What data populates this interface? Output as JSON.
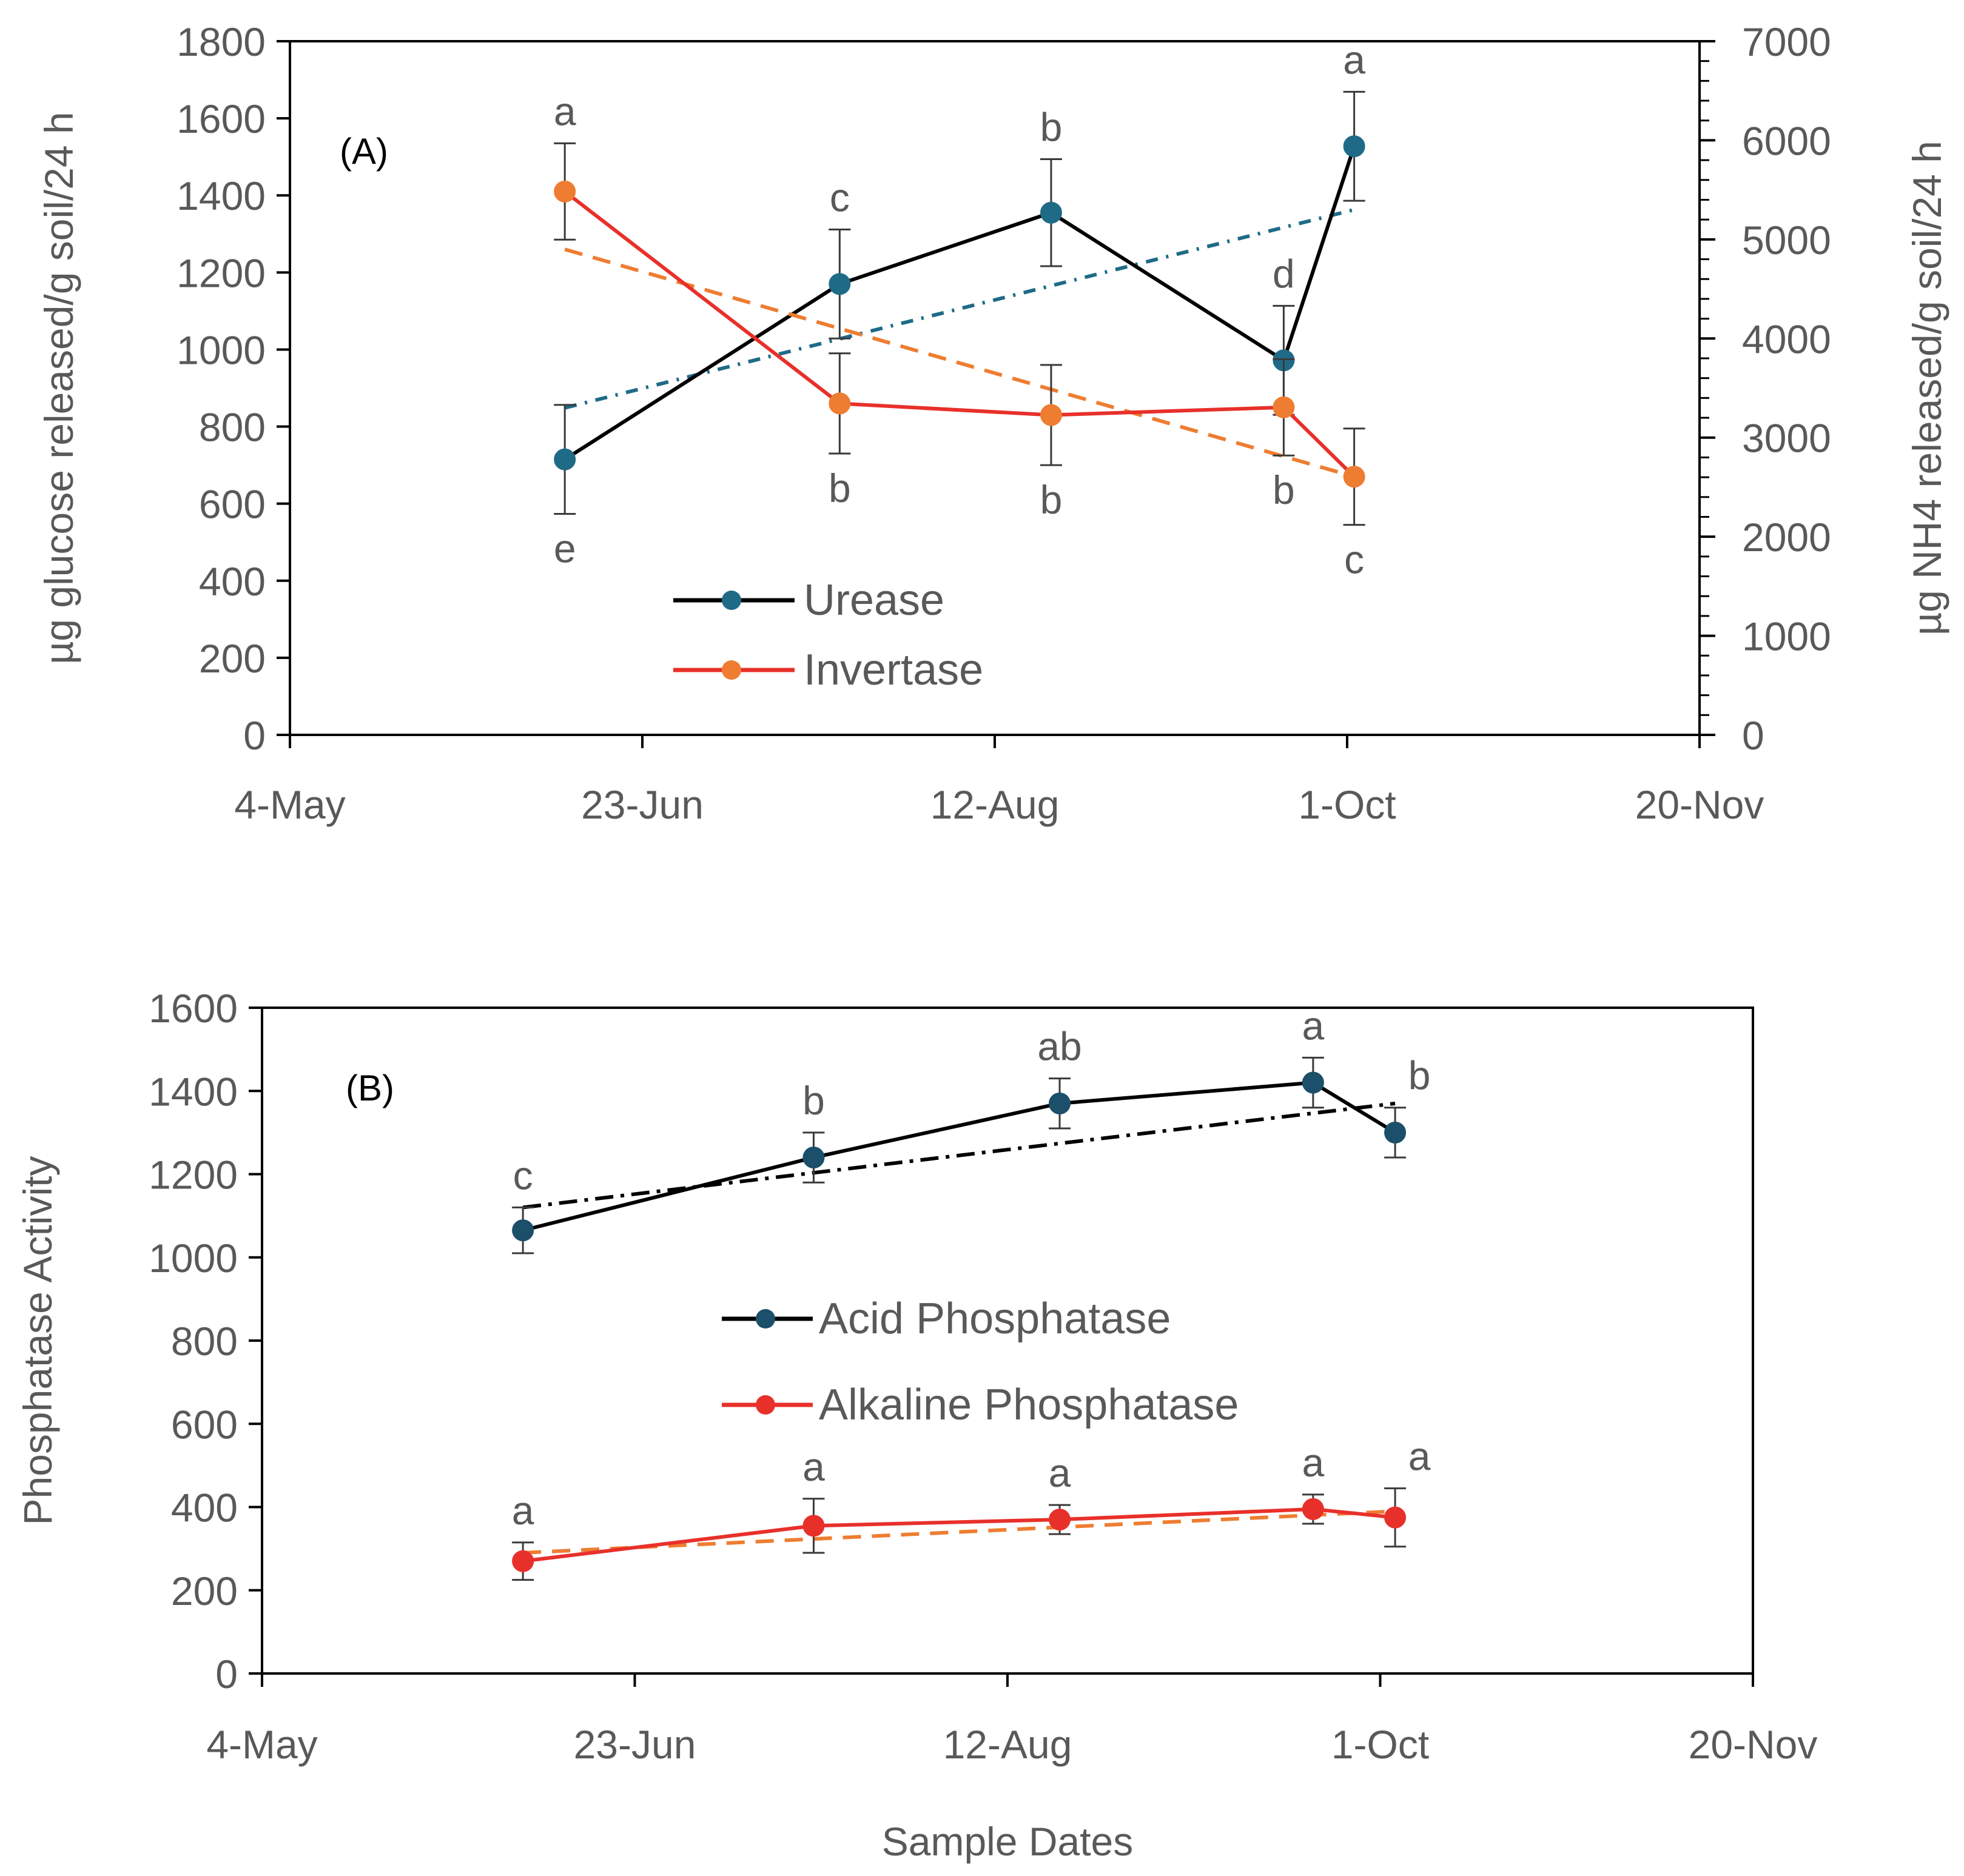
{
  "chart_data": [
    {
      "panel": "(A)",
      "type": "line",
      "xlabel": "",
      "x_ticks": [
        "4-May",
        "23-Jun",
        "12-Aug",
        "1-Oct",
        "20-Nov"
      ],
      "xlim_days": [
        0,
        200
      ],
      "ylabel": "µg glucose released/g soil/24 h",
      "ylim": [
        0,
        1800
      ],
      "y_ticks": [
        "0",
        "200",
        "400",
        "600",
        "800",
        "1000",
        "1200",
        "1400",
        "1600",
        "1800"
      ],
      "y2label": "µg NH4 released/g soil/24 h",
      "y2lim": [
        0,
        7000
      ],
      "y2_ticks": [
        "0",
        "1000",
        "2000",
        "3000",
        "4000",
        "5000",
        "6000",
        "7000"
      ],
      "grid": false,
      "legend_position": "lower-center",
      "series": [
        {
          "name": "Urease",
          "axis": "right",
          "line_color": "#000000",
          "marker_color": "#1f6b87",
          "x_days": [
            39,
            78,
            108,
            141,
            151
          ],
          "values": [
            2780,
            4550,
            5270,
            3780,
            5940
          ],
          "errors": [
            550,
            550,
            540,
            550,
            550
          ],
          "letters": [
            "e",
            "c",
            "b",
            "d",
            "a"
          ],
          "letter_positions": [
            "below",
            "above",
            "above",
            "above",
            "above"
          ],
          "trend_color": "#1f6b87",
          "trend_start": 3300,
          "trend_end": 5300
        },
        {
          "name": "Invertase",
          "axis": "left",
          "line_color": "#e8302a",
          "marker_color": "#ee7d31",
          "x_days": [
            39,
            78,
            108,
            141,
            151
          ],
          "values": [
            1410,
            860,
            830,
            850,
            670
          ],
          "errors": [
            125,
            130,
            130,
            125,
            125
          ],
          "letters": [
            "a",
            "b",
            "b",
            "b",
            "c"
          ],
          "letter_positions": [
            "above",
            "below",
            "below",
            "below",
            "below"
          ],
          "trend_color": "#ee7d31",
          "trend_start": 1260,
          "trend_end": 670
        }
      ]
    },
    {
      "panel": "(B)",
      "type": "line",
      "xlabel": "Sample Dates",
      "x_ticks": [
        "4-May",
        "23-Jun",
        "12-Aug",
        "1-Oct",
        "20-Nov"
      ],
      "xlim_days": [
        0,
        200
      ],
      "ylabel": "Phosphatase Activity",
      "ylim": [
        0,
        1600
      ],
      "y_ticks": [
        "0",
        "200",
        "400",
        "600",
        "800",
        "1000",
        "1200",
        "1400",
        "1600"
      ],
      "grid": false,
      "legend_position": "center",
      "series": [
        {
          "name": "Acid Phosphatase",
          "line_color": "#000000",
          "marker_color": "#1b4f6a",
          "x_days": [
            35,
            74,
            107,
            141,
            152
          ],
          "values": [
            1065,
            1240,
            1370,
            1420,
            1300
          ],
          "errors": [
            55,
            60,
            60,
            60,
            60
          ],
          "letters": [
            "c",
            "b",
            "ab",
            "a",
            "b"
          ],
          "trend_color": "#000000",
          "trend_start": 1120,
          "trend_end": 1370
        },
        {
          "name": "Alkaline Phosphatase",
          "line_color": "#e8302a",
          "marker_color": "#e8302a",
          "x_days": [
            35,
            74,
            107,
            141,
            152
          ],
          "values": [
            270,
            355,
            370,
            395,
            375
          ],
          "errors": [
            45,
            65,
            35,
            35,
            70
          ],
          "letters": [
            "a",
            "a",
            "a",
            "a",
            "a"
          ],
          "trend_color": "#ee7d31",
          "trend_start": 290,
          "trend_end": 390
        }
      ]
    }
  ]
}
